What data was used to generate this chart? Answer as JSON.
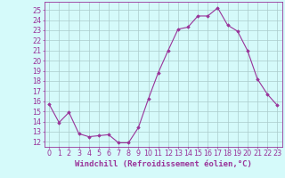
{
  "x": [
    0,
    1,
    2,
    3,
    4,
    5,
    6,
    7,
    8,
    9,
    10,
    11,
    12,
    13,
    14,
    15,
    16,
    17,
    18,
    19,
    20,
    21,
    22,
    23
  ],
  "y": [
    15.7,
    13.9,
    14.9,
    12.8,
    12.5,
    12.6,
    12.7,
    11.9,
    11.9,
    13.4,
    16.2,
    18.8,
    21.0,
    23.1,
    23.3,
    24.4,
    24.4,
    25.2,
    23.5,
    22.9,
    21.0,
    18.2,
    16.7,
    15.6
  ],
  "line_color": "#993399",
  "marker": "D",
  "markersize": 1.8,
  "linewidth": 0.8,
  "xlim": [
    -0.5,
    23.5
  ],
  "ylim": [
    11.5,
    25.8
  ],
  "yticks": [
    12,
    13,
    14,
    15,
    16,
    17,
    18,
    19,
    20,
    21,
    22,
    23,
    24,
    25
  ],
  "xticks": [
    0,
    1,
    2,
    3,
    4,
    5,
    6,
    7,
    8,
    9,
    10,
    11,
    12,
    13,
    14,
    15,
    16,
    17,
    18,
    19,
    20,
    21,
    22,
    23
  ],
  "xlabel": "Windchill (Refroidissement éolien,°C)",
  "bg_color": "#d5fafa",
  "grid_color": "#aacccc",
  "tick_color": "#993399",
  "label_color": "#993399",
  "axis_color": "#993399",
  "xlabel_fontsize": 6.5,
  "tick_fontsize": 5.8
}
